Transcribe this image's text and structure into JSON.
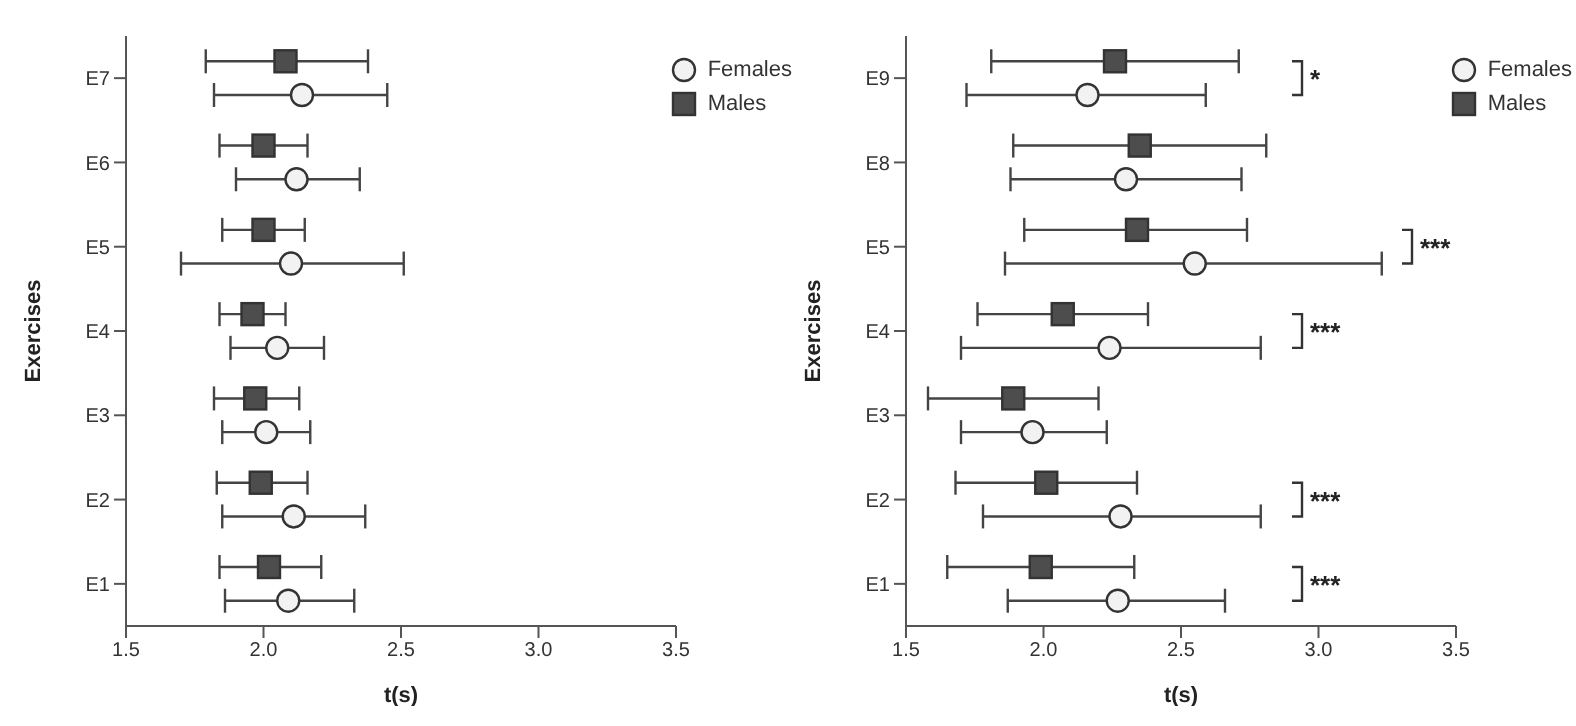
{
  "chart_data": [
    {
      "type": "scatter",
      "orientation": "horizontal",
      "xlabel": "t(s)",
      "ylabel": "Exercises",
      "categories": [
        "E7",
        "E6",
        "E5",
        "E4",
        "E3",
        "E2",
        "E1"
      ],
      "xlim": [
        1.5,
        3.5
      ],
      "xticks": [
        {
          "value": 1.5,
          "label": "1.5"
        },
        {
          "value": 2,
          "label": "2.0"
        },
        {
          "value": 2.5,
          "label": "2.5"
        },
        {
          "value": 3,
          "label": "3.0"
        },
        {
          "value": 3.5,
          "label": "3.5"
        }
      ],
      "grid": false,
      "legend": "top right",
      "series": [
        {
          "name": "Females",
          "color": "#f2f2f2",
          "marker": "circle",
          "values": [
            2.14,
            2.12,
            2.1,
            2.05,
            2.01,
            2.11,
            2.09
          ],
          "errors": [
            [
              1.82,
              2.45
            ],
            [
              1.9,
              2.35
            ],
            [
              1.7,
              2.51
            ],
            [
              1.88,
              2.22
            ],
            [
              1.85,
              2.17
            ],
            [
              1.85,
              2.37
            ],
            [
              1.86,
              2.33
            ]
          ]
        },
        {
          "name": "Males",
          "color": "#4d4d4d",
          "marker": "square",
          "values": [
            2.08,
            2.0,
            2.0,
            1.96,
            1.97,
            1.99,
            2.02
          ],
          "errors": [
            [
              1.79,
              2.38
            ],
            [
              1.84,
              2.16
            ],
            [
              1.85,
              2.15
            ],
            [
              1.84,
              2.08
            ],
            [
              1.82,
              2.13
            ],
            [
              1.83,
              2.16
            ],
            [
              1.84,
              2.21
            ]
          ]
        }
      ]
    },
    {
      "type": "scatter",
      "orientation": "horizontal",
      "xlabel": "t(s)",
      "ylabel": "Exercises",
      "categories": [
        "E9",
        "E8",
        "E5",
        "E4",
        "E3",
        "E2",
        "E1"
      ],
      "xlim": [
        1.5,
        3.5
      ],
      "xticks": [
        {
          "value": 1.5,
          "label": "1.5"
        },
        {
          "value": 2,
          "label": "2.0"
        },
        {
          "value": 2.5,
          "label": "2.5"
        },
        {
          "value": 3,
          "label": "3.0"
        },
        {
          "value": 3.5,
          "label": "3.5"
        }
      ],
      "grid": false,
      "legend": "top right",
      "series": [
        {
          "name": "Females",
          "color": "#f2f2f2",
          "marker": "circle",
          "values": [
            2.16,
            2.3,
            2.55,
            2.24,
            1.96,
            2.28,
            2.27
          ],
          "errors": [
            [
              1.72,
              2.59
            ],
            [
              1.88,
              2.72
            ],
            [
              1.86,
              3.23
            ],
            [
              1.7,
              2.79
            ],
            [
              1.7,
              2.23
            ],
            [
              1.78,
              2.79
            ],
            [
              1.87,
              2.66
            ]
          ]
        },
        {
          "name": "Males",
          "color": "#4d4d4d",
          "marker": "square",
          "values": [
            2.26,
            2.35,
            2.34,
            2.07,
            1.89,
            2.01,
            1.99
          ],
          "errors": [
            [
              1.81,
              2.71
            ],
            [
              1.89,
              2.81
            ],
            [
              1.93,
              2.74
            ],
            [
              1.76,
              2.38
            ],
            [
              1.58,
              2.2
            ],
            [
              1.68,
              2.34
            ],
            [
              1.65,
              2.33
            ]
          ]
        }
      ],
      "annotations": [
        "*",
        "***",
        "***",
        "***",
        "***"
      ]
    }
  ]
}
